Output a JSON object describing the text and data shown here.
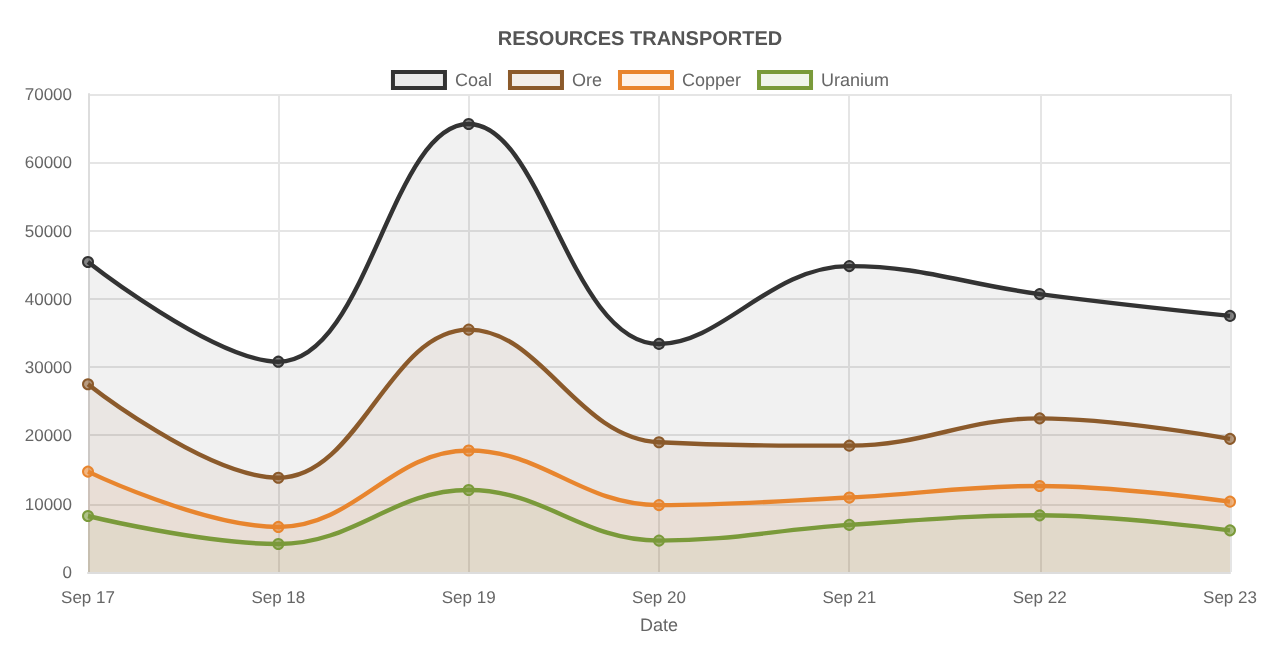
{
  "chart_data": {
    "type": "area",
    "title": "RESOURCES TRANSPORTED",
    "xlabel": "Date",
    "categories": [
      "Sep 17",
      "Sep 18",
      "Sep 19",
      "Sep 20",
      "Sep 21",
      "Sep 22",
      "Sep 23"
    ],
    "series": [
      {
        "name": "Coal",
        "color": "#333333",
        "values": [
          45400,
          30800,
          65600,
          33400,
          44800,
          40700,
          37500
        ]
      },
      {
        "name": "Ore",
        "color": "#8b5a2b",
        "values": [
          27500,
          13800,
          35500,
          19000,
          18500,
          22500,
          19500
        ]
      },
      {
        "name": "Copper",
        "color": "#e8852e",
        "values": [
          14700,
          6600,
          17800,
          9800,
          10900,
          12600,
          10300
        ]
      },
      {
        "name": "Uranium",
        "color": "#7a9a3a",
        "values": [
          8200,
          4100,
          12000,
          4600,
          6900,
          8300,
          6100
        ]
      }
    ],
    "ylim": [
      0,
      70000
    ],
    "yticks": [
      0,
      10000,
      20000,
      30000,
      40000,
      50000,
      60000,
      70000
    ],
    "grid": true,
    "legend": "top",
    "marker": "circle"
  }
}
